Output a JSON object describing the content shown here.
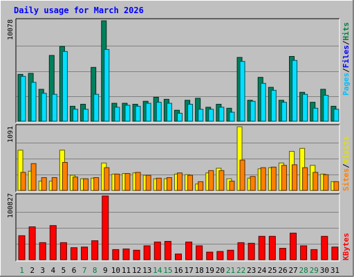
{
  "title": "Daily usage for March 2026",
  "colors": {
    "background": "#c0c0c0",
    "hits": "#00805c",
    "files": "#00e0ff",
    "pages": "#00c0ff",
    "visits": "#ffff00",
    "sites": "#ff8000",
    "kbytes": "#ff0000",
    "weekend_label": "#008040",
    "title": "#0000ff"
  },
  "chart_data": [
    {
      "type": "bar",
      "panel": "hits-files",
      "ylabel_max": "10078",
      "ylim": [
        0,
        10078
      ],
      "legend": {
        "hits": "Hits",
        "files": "Files",
        "pages": "Pages",
        "sep": "/"
      },
      "series": [
        {
          "name": "Hits",
          "values": [
            4700,
            4800,
            3200,
            6600,
            7500,
            1500,
            1700,
            5400,
            10078,
            1800,
            1800,
            1700,
            2000,
            2400,
            2200,
            1100,
            2100,
            2300,
            1400,
            1700,
            1300,
            6400,
            2100,
            4400,
            3400,
            2100,
            6500,
            2900,
            1900,
            3200,
            1500
          ]
        },
        {
          "name": "Files",
          "values": [
            4500,
            3900,
            2800,
            2700,
            7000,
            1200,
            1200,
            2700,
            7200,
            1400,
            1600,
            1500,
            1800,
            1900,
            1800,
            800,
            1700,
            1200,
            1200,
            1400,
            900,
            6000,
            2000,
            3800,
            3100,
            1900,
            6100,
            2700,
            1300,
            2600,
            1200
          ]
        }
      ]
    },
    {
      "type": "bar",
      "panel": "visits-sites",
      "ylabel_max": "1091",
      "ylim": [
        0,
        1091
      ],
      "legend": {
        "visits": "Visits",
        "sites": "Sites",
        "sep": "/"
      },
      "series": [
        {
          "name": "Visits",
          "values": [
            690,
            330,
            160,
            160,
            690,
            260,
            200,
            210,
            470,
            280,
            290,
            300,
            260,
            200,
            200,
            280,
            270,
            110,
            300,
            380,
            200,
            1091,
            210,
            370,
            390,
            470,
            670,
            720,
            430,
            280,
            150
          ]
        },
        {
          "name": "Sites",
          "values": [
            310,
            460,
            220,
            220,
            480,
            230,
            200,
            220,
            390,
            280,
            290,
            310,
            260,
            210,
            220,
            300,
            260,
            150,
            340,
            340,
            160,
            520,
            240,
            390,
            400,
            430,
            440,
            390,
            310,
            270,
            150
          ]
        }
      ]
    },
    {
      "type": "bar",
      "panel": "kbytes",
      "ylabel_max": "100827",
      "ylim": [
        0,
        100827
      ],
      "legend": {
        "kbytes": "KBytes"
      },
      "series": [
        {
          "name": "KBytes",
          "values": [
            38000,
            52000,
            27000,
            54000,
            27000,
            19000,
            20000,
            30000,
            100827,
            16000,
            17000,
            15000,
            22000,
            28000,
            29000,
            9000,
            28000,
            22000,
            12000,
            13000,
            15000,
            27000,
            26000,
            37000,
            37000,
            18000,
            42000,
            22000,
            16000,
            37000,
            20000
          ]
        }
      ]
    },
    {
      "type": "axis",
      "categories": [
        "1",
        "2",
        "3",
        "4",
        "5",
        "6",
        "7",
        "8",
        "9",
        "10",
        "11",
        "12",
        "13",
        "14",
        "15",
        "16",
        "17",
        "18",
        "19",
        "20",
        "21",
        "22",
        "23",
        "24",
        "25",
        "26",
        "27",
        "28",
        "29",
        "30",
        "31"
      ],
      "weekend": [
        1,
        7,
        8,
        14,
        15,
        21,
        22,
        28,
        29
      ]
    }
  ]
}
